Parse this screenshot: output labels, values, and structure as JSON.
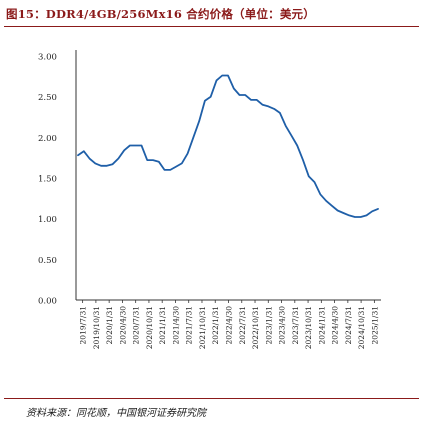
{
  "figure": {
    "title": "图15：DDR4/4GB/256Mx16 合约价格（单位：美元）",
    "source": "资料来源：同花顺，中国银河证券研究院"
  },
  "colors": {
    "line": "#1f5fa8",
    "axis": "#333333",
    "accent": "#8b1a1a"
  },
  "chart_data": {
    "type": "line",
    "title": "",
    "xlabel": "",
    "ylabel": "",
    "ylim": [
      0,
      3
    ],
    "yticks": [
      "0.00",
      "0.50",
      "1.00",
      "1.50",
      "2.00",
      "2.50",
      "3.00"
    ],
    "xticks": [
      "2019/7/31",
      "2019/10/31",
      "2020/1/31",
      "2020/4/30",
      "2020/7/31",
      "2020/10/31",
      "2021/1/31",
      "2021/4/30",
      "2021/7/31",
      "2021/10/31",
      "2022/1/31",
      "2022/4/30",
      "2022/7/31",
      "2022/10/31",
      "2023/1/31",
      "2023/4/30",
      "2023/7/31",
      "2023/10/31",
      "2024/1/31",
      "2024/4/30",
      "2024/7/31",
      "2024/10/31",
      "2025/1/31"
    ],
    "grid": false,
    "series": [
      {
        "values": [
          1.78,
          1.83,
          1.74,
          1.68,
          1.65,
          1.65,
          1.67,
          1.74,
          1.84,
          1.9,
          1.9,
          1.9,
          1.72,
          1.72,
          1.7,
          1.6,
          1.6,
          1.64,
          1.68,
          1.8,
          2.0,
          2.2,
          2.45,
          2.5,
          2.7,
          2.76,
          2.76,
          2.6,
          2.52,
          2.52,
          2.46,
          2.46,
          2.4,
          2.38,
          2.35,
          2.3,
          2.14,
          2.02,
          1.9,
          1.72,
          1.52,
          1.45,
          1.3,
          1.22,
          1.16,
          1.1,
          1.07,
          1.04,
          1.02,
          1.02,
          1.04,
          1.09,
          1.12
        ]
      }
    ]
  }
}
